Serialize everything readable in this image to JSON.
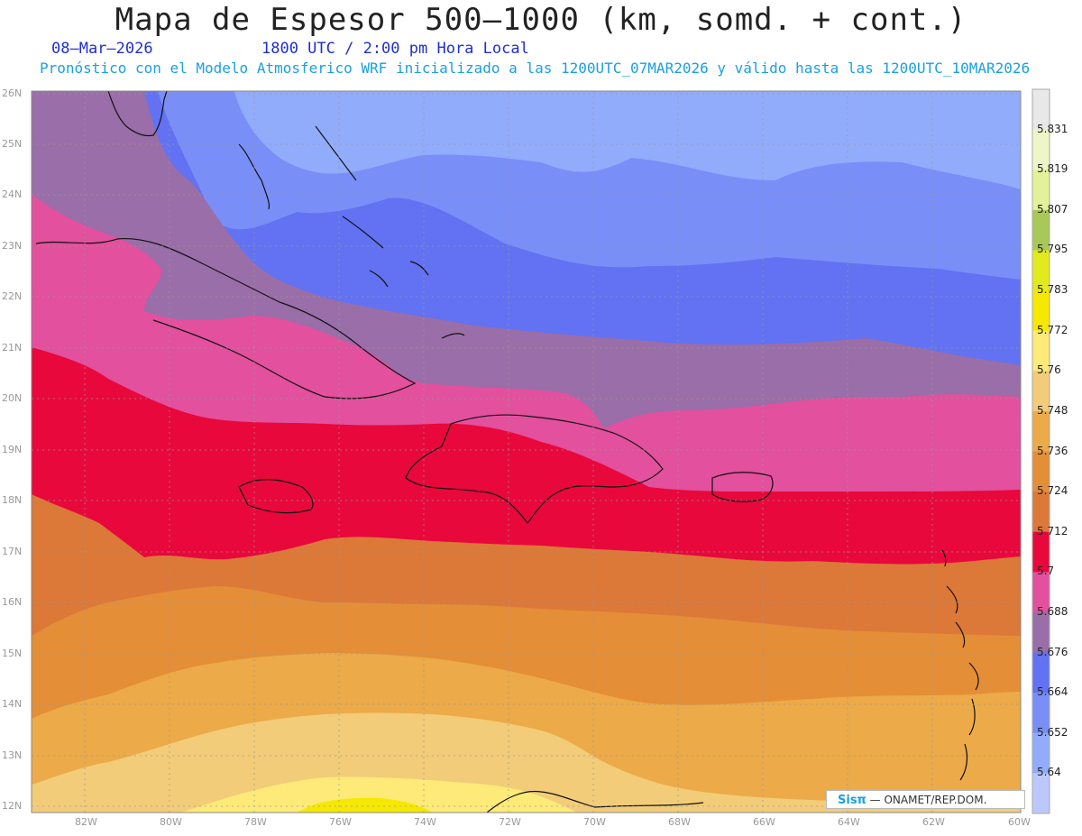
{
  "header": {
    "title": "Mapa de Espesor 500—1000 (km, somd. + cont.)",
    "date": "08—Mar—2026",
    "utc": "1800 UTC / 2:00 pm Hora Local",
    "subtitle": "Pronóstico con el Modelo Atmosferico WRF inicializado a las 1200UTC_07MAR2026 y válido hasta las  1200UTC_10MAR2026"
  },
  "axes": {
    "lat_labels": [
      "26N",
      "25N",
      "24N",
      "23N",
      "22N",
      "21N",
      "20N",
      "19N",
      "18N",
      "17N",
      "16N",
      "15N",
      "14N",
      "13N",
      "12N"
    ],
    "lon_labels": [
      "82W",
      "80W",
      "78W",
      "76W",
      "74W",
      "72W",
      "70W",
      "68W",
      "66W",
      "64W",
      "62W",
      "60W"
    ]
  },
  "colorbar": {
    "levels": [
      "5.831",
      "5.819",
      "5.807",
      "5.795",
      "5.783",
      "5.772",
      "5.76",
      "5.748",
      "5.736",
      "5.724",
      "5.712",
      "5.7",
      "5.688",
      "5.676",
      "5.664",
      "5.652",
      "5.64"
    ],
    "colors": [
      "#e8e8e8",
      "#eef6c8",
      "#e3f29a",
      "#a8c858",
      "#e2ea1e",
      "#f6e800",
      "#fdea78",
      "#f2cc78",
      "#ecaa48",
      "#e48e38",
      "#dc7838",
      "#e8083c",
      "#e2509e",
      "#9a6ea8",
      "#6272f2",
      "#7a8ef8",
      "#92acfc",
      "#bcc8fc"
    ]
  },
  "credit": {
    "brand": "Sisπ",
    "text": "— ONAMET/REP.DOM."
  }
}
